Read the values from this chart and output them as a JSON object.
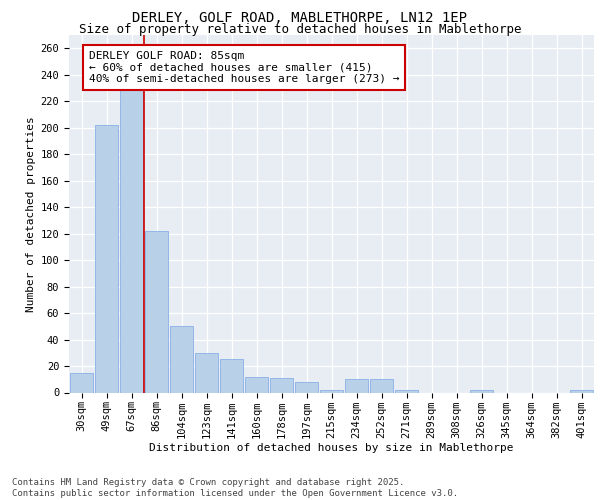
{
  "title1": "DERLEY, GOLF ROAD, MABLETHORPE, LN12 1EP",
  "title2": "Size of property relative to detached houses in Mablethorpe",
  "xlabel": "Distribution of detached houses by size in Mablethorpe",
  "ylabel": "Number of detached properties",
  "categories": [
    "30sqm",
    "49sqm",
    "67sqm",
    "86sqm",
    "104sqm",
    "123sqm",
    "141sqm",
    "160sqm",
    "178sqm",
    "197sqm",
    "215sqm",
    "234sqm",
    "252sqm",
    "271sqm",
    "289sqm",
    "308sqm",
    "326sqm",
    "345sqm",
    "364sqm",
    "382sqm",
    "401sqm"
  ],
  "values": [
    15,
    202,
    230,
    122,
    50,
    30,
    25,
    12,
    11,
    8,
    2,
    10,
    10,
    2,
    0,
    0,
    2,
    0,
    0,
    0,
    2
  ],
  "bar_color": "#b8d0e8",
  "bar_edge_color": "#8aafe8",
  "vline_x": 2.5,
  "vline_color": "#cc0000",
  "annotation_text": "DERLEY GOLF ROAD: 85sqm\n← 60% of detached houses are smaller (415)\n40% of semi-detached houses are larger (273) →",
  "annotation_box_facecolor": "#ffffff",
  "annotation_box_edgecolor": "#cc0000",
  "ylim_max": 270,
  "yticks": [
    0,
    20,
    40,
    60,
    80,
    100,
    120,
    140,
    160,
    180,
    200,
    220,
    240,
    260
  ],
  "plot_bg": "#e8edf4",
  "footer": "Contains HM Land Registry data © Crown copyright and database right 2025.\nContains public sector information licensed under the Open Government Licence v3.0.",
  "title1_fontsize": 10,
  "title2_fontsize": 9,
  "axis_label_fontsize": 8,
  "tick_fontsize": 7.5,
  "annot_fontsize": 8,
  "footer_fontsize": 6.5
}
